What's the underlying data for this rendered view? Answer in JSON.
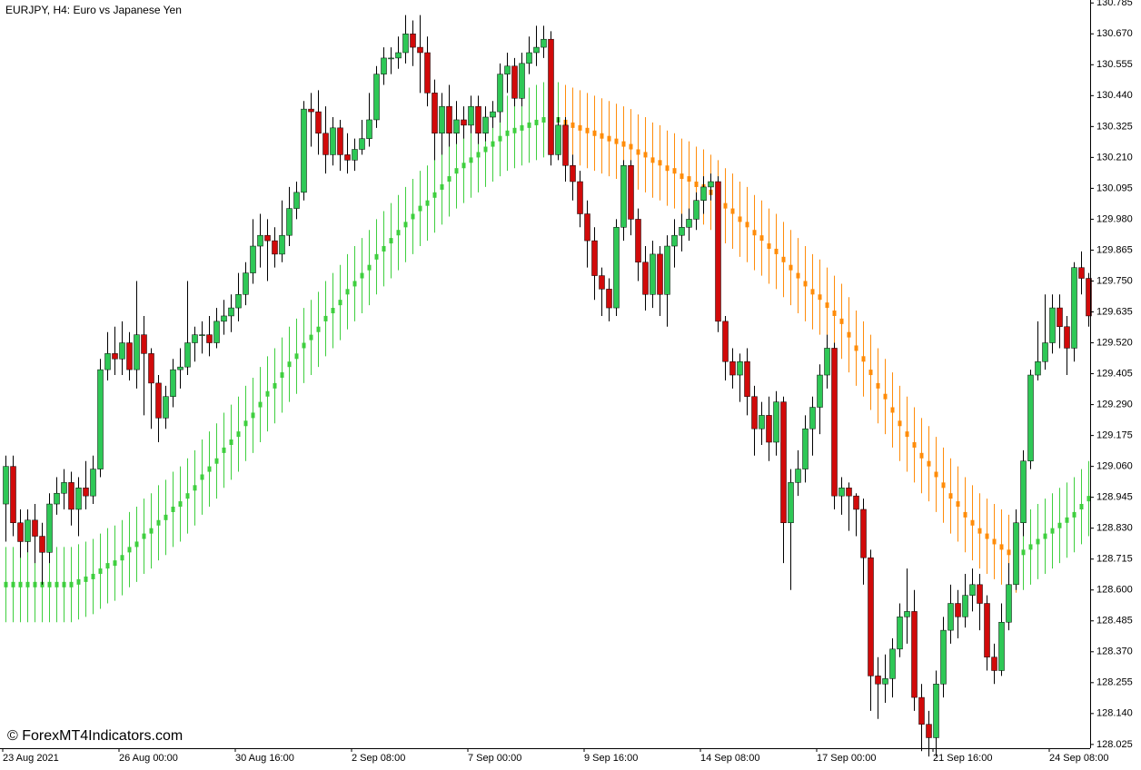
{
  "chart_data": {
    "type": "candlestick",
    "title": "EURJPY, H4:  Euro vs Japanese Yen",
    "watermark": "© ForexMT4Indicators.com",
    "up_color": "#2ec856",
    "down_color": "#d10a0a",
    "wick_color": "#000000",
    "ylim": [
      128.011,
      130.796
    ],
    "yticks": [
      130.785,
      {
        "value": 130.67,
        "label": "130.670"
      },
      130.555,
      {
        "value": 130.44,
        "label": "130.440"
      },
      130.325,
      {
        "value": 130.21,
        "label": "130.210"
      },
      130.095,
      {
        "value": 129.98,
        "label": "129.980"
      },
      129.865,
      {
        "value": 129.75,
        "label": "129.750"
      },
      129.635,
      {
        "value": 129.52,
        "label": "129.520"
      },
      129.405,
      {
        "value": 129.29,
        "label": "129.290"
      },
      129.175,
      {
        "value": 129.06,
        "label": "129.060"
      },
      128.945,
      {
        "value": 128.83,
        "label": "128.830"
      },
      128.715,
      {
        "value": 128.6,
        "label": "128.600"
      },
      128.485,
      {
        "value": 128.37,
        "label": "128.370"
      },
      128.255,
      {
        "value": 128.14,
        "label": "128.140"
      },
      128.025
    ],
    "xticks": [
      {
        "value": 0,
        "label": "23 Aug 2021"
      },
      {
        "value": 16,
        "label": "26 Aug 00:00"
      },
      {
        "value": 32,
        "label": "30 Aug 16:00"
      },
      {
        "value": 48,
        "label": "2 Sep 08:00"
      },
      {
        "value": 64,
        "label": "7 Sep 00:00"
      },
      {
        "value": 80,
        "label": "9 Sep 16:00"
      },
      {
        "value": 96,
        "label": "14 Sep 08:00"
      },
      {
        "value": 112,
        "label": "17 Sep 00:00"
      },
      {
        "value": 128,
        "label": "21 Sep 16:00"
      },
      {
        "value": 144,
        "label": "24 Sep 08:00"
      }
    ],
    "open": [
      128.92,
      129.06,
      128.85,
      128.78,
      128.86,
      128.8,
      128.74,
      128.92,
      128.96,
      129.0,
      128.9,
      128.98,
      128.95,
      129.05,
      129.42,
      129.48,
      129.46,
      129.52,
      129.42,
      129.55,
      129.48,
      129.37,
      129.24,
      129.32,
      129.42,
      129.43,
      129.52,
      129.55,
      129.55,
      129.52,
      129.6,
      129.62,
      129.65,
      129.7,
      129.78,
      129.88,
      129.92,
      129.9,
      129.85,
      129.92,
      130.02,
      130.08,
      130.39,
      130.38,
      130.3,
      130.22,
      130.32,
      130.22,
      130.2,
      130.24,
      130.28,
      130.35,
      130.52,
      130.58,
      130.58,
      130.6,
      130.67,
      130.62,
      130.6,
      130.45,
      130.3,
      130.4,
      130.3,
      130.35,
      130.33,
      130.4,
      130.3,
      130.36,
      130.38,
      130.52,
      130.55,
      130.43,
      130.56,
      130.6,
      130.62,
      130.65,
      130.22,
      130.33,
      130.18,
      130.12,
      130.0,
      129.9,
      129.77,
      129.72,
      129.65,
      129.95,
      130.18,
      129.98,
      129.82,
      129.7,
      129.85,
      129.7,
      129.88,
      129.92,
      129.95,
      129.98,
      130.05,
      130.1,
      130.12,
      129.6,
      129.45,
      129.4,
      129.45,
      129.32,
      129.2,
      129.25,
      129.15,
      129.3,
      128.85,
      129.0,
      129.05,
      129.2,
      129.28,
      129.4,
      129.5,
      128.95,
      128.98,
      128.95,
      128.9,
      128.72,
      128.28,
      128.25,
      128.27,
      128.38,
      128.5,
      128.52,
      128.2,
      128.1,
      128.05,
      128.25,
      128.45,
      128.55,
      128.5,
      128.58,
      128.62,
      128.55,
      128.35,
      128.3,
      128.48,
      128.62,
      128.85,
      129.08,
      129.4,
      129.45,
      129.52,
      129.65,
      129.58,
      129.5,
      129.8,
      129.76
    ],
    "high": [
      129.1,
      129.1,
      128.9,
      128.9,
      128.92,
      128.85,
      128.96,
      129.02,
      129.05,
      129.04,
      129.02,
      129.08,
      129.1,
      129.46,
      129.56,
      129.58,
      129.6,
      129.56,
      129.75,
      129.62,
      129.5,
      129.4,
      129.36,
      129.46,
      129.5,
      129.75,
      129.58,
      129.6,
      129.62,
      129.65,
      129.68,
      129.7,
      129.78,
      129.82,
      129.98,
      130.0,
      129.98,
      129.95,
      130.05,
      130.1,
      130.12,
      130.42,
      130.45,
      130.46,
      130.4,
      130.36,
      130.35,
      130.3,
      130.28,
      130.35,
      130.45,
      130.55,
      130.62,
      130.62,
      130.66,
      130.74,
      130.72,
      130.74,
      130.66,
      130.5,
      130.45,
      130.48,
      130.42,
      130.4,
      130.44,
      130.44,
      130.4,
      130.42,
      130.56,
      130.6,
      130.58,
      130.6,
      130.66,
      130.7,
      130.7,
      130.68,
      130.36,
      130.36,
      130.22,
      130.16,
      130.05,
      129.95,
      129.8,
      129.76,
      129.98,
      130.2,
      130.2,
      130.02,
      129.88,
      129.9,
      129.88,
      129.92,
      129.98,
      130.0,
      130.02,
      130.08,
      130.14,
      130.15,
      130.14,
      129.62,
      129.5,
      129.48,
      129.5,
      129.36,
      129.3,
      129.32,
      129.34,
      129.32,
      129.05,
      129.12,
      129.25,
      129.32,
      129.44,
      129.55,
      129.52,
      129.02,
      129.0,
      128.96,
      128.94,
      128.75,
      128.35,
      128.36,
      128.42,
      128.55,
      128.68,
      128.6,
      128.25,
      128.15,
      128.3,
      128.5,
      128.62,
      128.6,
      128.66,
      128.68,
      128.66,
      128.58,
      128.4,
      128.55,
      128.7,
      128.9,
      129.12,
      129.42,
      129.6,
      129.7,
      129.7,
      129.7,
      129.62,
      129.82,
      129.86,
      129.78
    ],
    "low": [
      128.78,
      128.8,
      128.72,
      128.74,
      128.7,
      128.62,
      128.7,
      128.88,
      128.9,
      128.84,
      128.8,
      128.9,
      128.92,
      129.02,
      129.38,
      129.4,
      129.4,
      129.38,
      129.35,
      129.25,
      129.2,
      129.15,
      129.2,
      129.28,
      129.35,
      129.4,
      129.45,
      129.48,
      129.47,
      129.5,
      129.55,
      129.56,
      129.6,
      129.66,
      129.74,
      129.8,
      129.75,
      129.8,
      129.82,
      129.88,
      129.98,
      130.05,
      130.25,
      130.22,
      130.15,
      130.18,
      130.16,
      130.15,
      130.16,
      130.22,
      130.25,
      130.32,
      130.48,
      130.52,
      130.54,
      130.56,
      130.55,
      130.45,
      130.4,
      130.2,
      130.22,
      130.25,
      130.26,
      130.28,
      130.3,
      130.26,
      130.27,
      130.32,
      130.34,
      130.45,
      130.4,
      130.4,
      130.52,
      130.55,
      130.58,
      130.18,
      130.2,
      130.12,
      130.05,
      129.95,
      129.8,
      129.68,
      129.62,
      129.6,
      129.62,
      129.9,
      129.92,
      129.75,
      129.64,
      129.65,
      129.62,
      129.58,
      129.8,
      129.86,
      129.9,
      129.94,
      130.0,
      130.05,
      129.56,
      129.38,
      129.35,
      129.3,
      129.25,
      129.1,
      129.14,
      129.08,
      129.1,
      128.7,
      128.6,
      128.95,
      129.0,
      129.1,
      129.18,
      129.35,
      128.9,
      128.88,
      128.82,
      128.8,
      128.62,
      128.15,
      128.12,
      128.18,
      128.2,
      128.35,
      128.4,
      128.15,
      128.0,
      127.98,
      127.98,
      128.2,
      128.4,
      128.42,
      128.46,
      128.52,
      128.45,
      128.3,
      128.25,
      128.28,
      128.45,
      128.6,
      128.8,
      129.05,
      129.38,
      129.42,
      129.48,
      129.5,
      129.4,
      129.45,
      129.7,
      129.58
    ],
    "close": [
      129.06,
      128.85,
      128.78,
      128.86,
      128.8,
      128.74,
      128.92,
      128.96,
      129.0,
      128.9,
      128.98,
      128.95,
      129.05,
      129.42,
      129.48,
      129.46,
      129.52,
      129.42,
      129.55,
      129.48,
      129.37,
      129.24,
      129.32,
      129.42,
      129.43,
      129.52,
      129.55,
      129.55,
      129.52,
      129.6,
      129.62,
      129.65,
      129.7,
      129.78,
      129.88,
      129.92,
      129.9,
      129.85,
      129.92,
      130.02,
      130.08,
      130.39,
      130.38,
      130.3,
      130.22,
      130.32,
      130.22,
      130.2,
      130.24,
      130.28,
      130.35,
      130.52,
      130.58,
      130.58,
      130.6,
      130.67,
      130.62,
      130.6,
      130.45,
      130.3,
      130.4,
      130.3,
      130.35,
      130.33,
      130.4,
      130.3,
      130.36,
      130.38,
      130.52,
      130.55,
      130.43,
      130.56,
      130.6,
      130.62,
      130.65,
      130.22,
      130.33,
      130.18,
      130.12,
      130.0,
      129.9,
      129.77,
      129.72,
      129.65,
      129.95,
      130.18,
      129.98,
      129.82,
      129.7,
      129.85,
      129.7,
      129.88,
      129.92,
      129.95,
      129.98,
      130.05,
      130.1,
      130.12,
      129.6,
      129.45,
      129.4,
      129.45,
      129.32,
      129.2,
      129.25,
      129.15,
      129.3,
      128.85,
      129.0,
      129.05,
      129.2,
      129.28,
      129.4,
      129.5,
      128.95,
      128.98,
      128.95,
      128.9,
      128.72,
      128.28,
      128.25,
      128.27,
      128.38,
      128.5,
      128.52,
      128.2,
      128.1,
      128.05,
      128.25,
      128.45,
      128.55,
      128.5,
      128.58,
      128.62,
      128.55,
      128.35,
      128.3,
      128.48,
      128.62,
      128.85,
      129.08,
      129.4,
      129.45,
      129.52,
      129.65,
      129.58,
      129.5,
      129.8,
      129.76,
      129.62
    ],
    "indicator": {
      "band": 0.14,
      "rise_color": "#3fcf3f",
      "fall_color": "#ff8c0a",
      "values": [
        128.62,
        128.62,
        128.62,
        128.62,
        128.62,
        128.62,
        128.62,
        128.62,
        128.62,
        128.62,
        128.63,
        128.64,
        128.65,
        128.67,
        128.69,
        128.7,
        128.72,
        128.75,
        128.77,
        128.8,
        128.82,
        128.85,
        128.87,
        128.9,
        128.92,
        128.95,
        128.98,
        129.02,
        129.05,
        129.08,
        129.12,
        129.15,
        129.18,
        129.22,
        129.25,
        129.29,
        129.33,
        129.36,
        129.4,
        129.44,
        129.47,
        129.51,
        129.54,
        129.57,
        129.61,
        129.64,
        129.67,
        129.71,
        129.74,
        129.77,
        129.8,
        129.84,
        129.87,
        129.9,
        129.93,
        129.96,
        129.99,
        130.02,
        130.04,
        130.07,
        130.1,
        130.13,
        130.16,
        130.18,
        130.2,
        130.22,
        130.24,
        130.26,
        130.28,
        130.3,
        130.31,
        130.32,
        130.33,
        130.34,
        130.35,
        130.35,
        130.35,
        130.34,
        130.33,
        130.32,
        130.31,
        130.3,
        130.29,
        130.28,
        130.27,
        130.26,
        130.25,
        130.23,
        130.22,
        130.2,
        130.19,
        130.17,
        130.16,
        130.14,
        130.13,
        130.11,
        130.1,
        130.08,
        130.06,
        130.03,
        130.01,
        129.98,
        129.96,
        129.93,
        129.91,
        129.88,
        129.86,
        129.83,
        129.8,
        129.77,
        129.74,
        129.71,
        129.69,
        129.66,
        129.63,
        129.6,
        129.55,
        129.5,
        129.46,
        129.41,
        129.36,
        129.32,
        129.27,
        129.22,
        129.18,
        129.14,
        129.1,
        129.07,
        129.03,
        128.99,
        128.95,
        128.92,
        128.88,
        128.85,
        128.82,
        128.8,
        128.78,
        128.76,
        128.74,
        128.73,
        128.74,
        128.76,
        128.78,
        128.8,
        128.82,
        128.84,
        128.86,
        128.88,
        128.91,
        128.94
      ]
    }
  }
}
